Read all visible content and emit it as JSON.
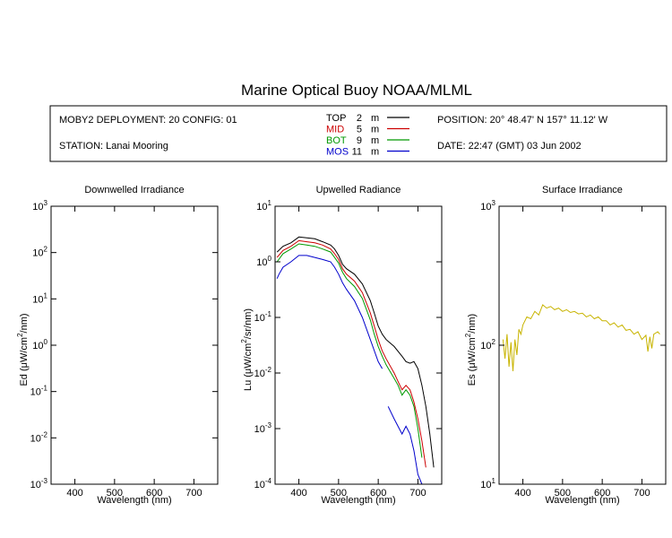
{
  "title": "Marine Optical Buoy NOAA/MLML",
  "header": {
    "deployment": "MOBY2 DEPLOYMENT: 20 CONFIG: 01",
    "station": "STATION: Lanai Mooring",
    "position": "POSITION: 20° 48.47' N   157° 11.12' W",
    "date": "DATE: 22:47 (GMT) 03 Jun 2002",
    "depths": [
      {
        "name": "TOP",
        "depth": "2",
        "unit": "m",
        "color": "#000000"
      },
      {
        "name": "MID",
        "depth": "5",
        "unit": "m",
        "color": "#cc0000"
      },
      {
        "name": "BOT",
        "depth": "9",
        "unit": "m",
        "color": "#009900"
      },
      {
        "name": "MOS",
        "depth": "11",
        "unit": "m",
        "color": "#0000cc"
      }
    ]
  },
  "chart_data": [
    {
      "type": "line",
      "title": "Downwelled Irradiance",
      "xlabel": "Wavelength (nm)",
      "ylabel_main": "Ed  (μW/cm",
      "ylabel_unit": "/nm)",
      "xlim": [
        340,
        760
      ],
      "xticks": [
        400,
        500,
        600,
        700
      ],
      "yscale": "log",
      "ylim_exp": [
        -3,
        3
      ],
      "series": []
    },
    {
      "type": "line",
      "title": "Upwelled Radiance",
      "xlabel": "Wavelength (nm)",
      "ylabel_main": "Lu  (μW/cm",
      "ylabel_unit": "/sr/nm)",
      "xlim": [
        340,
        760
      ],
      "xticks": [
        400,
        500,
        600,
        700
      ],
      "yscale": "log",
      "ylim_exp": [
        -4,
        1
      ],
      "series": [
        {
          "name": "TOP",
          "color": "#000000",
          "x": [
            345,
            360,
            380,
            400,
            420,
            440,
            460,
            480,
            490,
            500,
            510,
            520,
            540,
            560,
            580,
            590,
            600,
            610,
            620,
            640,
            660,
            670,
            680,
            690,
            700,
            710,
            720,
            730,
            740
          ],
          "y": [
            1.5,
            1.9,
            2.2,
            2.8,
            2.7,
            2.6,
            2.3,
            2.0,
            1.7,
            1.3,
            0.9,
            0.75,
            0.6,
            0.4,
            0.2,
            0.12,
            0.07,
            0.05,
            0.04,
            0.03,
            0.02,
            0.016,
            0.015,
            0.016,
            0.012,
            0.006,
            0.0025,
            0.0008,
            0.0002
          ]
        },
        {
          "name": "MID",
          "color": "#cc0000",
          "x": [
            345,
            360,
            380,
            400,
            420,
            440,
            460,
            480,
            490,
            500,
            510,
            520,
            540,
            560,
            580,
            590,
            600,
            610,
            620,
            640,
            650,
            660,
            670,
            680,
            690,
            700,
            710,
            720
          ],
          "y": [
            1.2,
            1.6,
            1.9,
            2.4,
            2.3,
            2.2,
            2.0,
            1.7,
            1.4,
            1.1,
            0.75,
            0.6,
            0.45,
            0.28,
            0.12,
            0.07,
            0.04,
            0.025,
            0.018,
            0.01,
            0.007,
            0.005,
            0.006,
            0.005,
            0.003,
            0.0015,
            0.0006,
            0.0002
          ]
        },
        {
          "name": "BOT",
          "color": "#009900",
          "x": [
            345,
            360,
            380,
            400,
            420,
            440,
            460,
            480,
            490,
            500,
            510,
            520,
            540,
            560,
            580,
            590,
            600,
            610,
            620,
            640,
            650,
            660,
            670,
            680,
            690,
            700,
            710
          ],
          "y": [
            1.0,
            1.4,
            1.7,
            2.1,
            2.0,
            1.9,
            1.7,
            1.5,
            1.2,
            0.95,
            0.65,
            0.5,
            0.36,
            0.22,
            0.09,
            0.05,
            0.03,
            0.02,
            0.014,
            0.008,
            0.006,
            0.004,
            0.005,
            0.004,
            0.0025,
            0.001,
            0.0003
          ]
        },
        {
          "name": "MOS",
          "color": "#0000cc",
          "x": [
            345,
            350,
            360,
            380,
            400,
            420,
            440,
            460,
            480,
            490,
            500,
            510,
            520,
            540,
            560,
            580,
            600,
            610,
            615,
            625,
            640,
            660,
            670,
            680,
            690,
            700,
            710
          ],
          "y": [
            0.5,
            0.6,
            0.8,
            1.0,
            1.3,
            1.3,
            1.2,
            1.1,
            1.0,
            0.8,
            0.6,
            0.42,
            0.32,
            0.2,
            0.1,
            0.04,
            0.016,
            0.012,
            null,
            0.0025,
            0.0015,
            0.0008,
            0.0011,
            0.0008,
            0.0004,
            0.00015,
            0.0001
          ]
        }
      ]
    },
    {
      "type": "line",
      "title": "Surface Irradiance",
      "xlabel": "Wavelength (nm)",
      "ylabel_main": "Es  (μW/cm",
      "ylabel_unit": "/nm)",
      "xlim": [
        340,
        760
      ],
      "xticks": [
        400,
        500,
        600,
        700
      ],
      "yscale": "log",
      "ylim_exp": [
        1,
        3
      ],
      "series": [
        {
          "name": "Es",
          "color": "#c8b400",
          "x": [
            350,
            355,
            360,
            365,
            370,
            375,
            380,
            385,
            390,
            395,
            400,
            410,
            420,
            430,
            440,
            450,
            460,
            470,
            480,
            490,
            500,
            510,
            520,
            530,
            540,
            550,
            560,
            570,
            580,
            590,
            600,
            610,
            620,
            630,
            640,
            650,
            660,
            670,
            680,
            690,
            700,
            710,
            715,
            720,
            725,
            730,
            740,
            745
          ],
          "y": [
            110,
            80,
            120,
            70,
            105,
            65,
            110,
            85,
            130,
            120,
            140,
            160,
            155,
            175,
            165,
            195,
            185,
            190,
            180,
            185,
            175,
            180,
            172,
            175,
            168,
            170,
            160,
            165,
            155,
            160,
            150,
            150,
            140,
            145,
            135,
            140,
            128,
            130,
            120,
            125,
            110,
            118,
            90,
            115,
            95,
            120,
            125,
            120
          ]
        }
      ]
    }
  ]
}
